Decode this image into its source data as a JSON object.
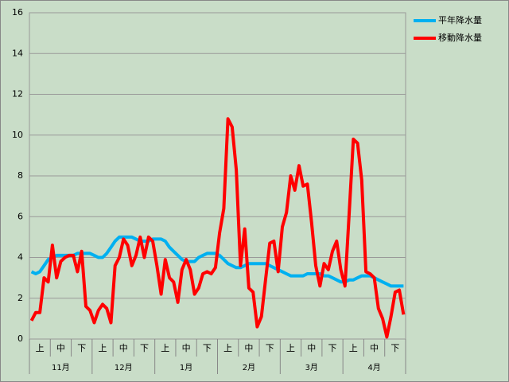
{
  "chart_data": {
    "type": "line",
    "categories": [
      null,
      null,
      "上",
      null,
      null,
      null,
      null,
      "中",
      null,
      null,
      null,
      null,
      "下",
      null,
      null,
      null,
      null,
      "上",
      null,
      null,
      null,
      null,
      "中",
      null,
      null,
      null,
      null,
      "下",
      null,
      null,
      null,
      null,
      "上",
      null,
      null,
      null,
      null,
      "中",
      null,
      null,
      null,
      null,
      "下",
      null,
      null,
      null,
      null,
      "上",
      null,
      null,
      null,
      null,
      "中",
      null,
      null,
      null,
      null,
      "下",
      null,
      null,
      null,
      null,
      "上",
      null,
      null,
      null,
      null,
      "中",
      null,
      null,
      null,
      null,
      "下",
      null,
      null,
      null,
      null,
      "上",
      null,
      null,
      null,
      null,
      "中",
      null,
      null,
      null,
      null,
      "下",
      null,
      null
    ],
    "months": [
      "11月",
      "12月",
      "1月",
      "2月",
      "3月",
      "4月"
    ],
    "series": [
      {
        "name": "平年降水量",
        "color": "#00b0f0",
        "values": [
          3.3,
          3.2,
          3.3,
          3.6,
          3.9,
          4.0,
          4.1,
          4.1,
          4.1,
          4.1,
          4.1,
          4.2,
          4.2,
          4.2,
          4.2,
          4.1,
          4.0,
          4.0,
          4.2,
          4.5,
          4.8,
          5.0,
          5.0,
          5.0,
          5.0,
          4.9,
          4.8,
          4.8,
          4.8,
          4.9,
          4.9,
          4.9,
          4.8,
          4.5,
          4.3,
          4.1,
          3.9,
          3.8,
          3.8,
          3.8,
          4.0,
          4.1,
          4.2,
          4.2,
          4.2,
          4.1,
          3.9,
          3.7,
          3.6,
          3.5,
          3.5,
          3.6,
          3.7,
          3.7,
          3.7,
          3.7,
          3.7,
          3.6,
          3.5,
          3.4,
          3.3,
          3.2,
          3.1,
          3.1,
          3.1,
          3.1,
          3.2,
          3.2,
          3.2,
          3.2,
          3.1,
          3.1,
          3.0,
          2.9,
          2.8,
          2.8,
          2.9,
          2.9,
          3.0,
          3.1,
          3.1,
          3.1,
          3.0,
          2.9,
          2.8,
          2.7,
          2.6,
          2.6,
          2.6,
          2.6
        ]
      },
      {
        "name": "移動降水量",
        "color": "#ff0000",
        "values": [
          0.9,
          1.3,
          1.3,
          3.0,
          2.8,
          4.6,
          3.0,
          3.8,
          4.0,
          4.1,
          4.1,
          3.3,
          4.3,
          1.6,
          1.4,
          0.8,
          1.4,
          1.7,
          1.5,
          0.8,
          3.6,
          4.0,
          4.9,
          4.6,
          3.6,
          4.1,
          5.0,
          4.0,
          5.0,
          4.8,
          3.6,
          2.2,
          3.9,
          3.0,
          2.8,
          1.8,
          3.4,
          3.9,
          3.4,
          2.2,
          2.5,
          3.2,
          3.3,
          3.2,
          3.5,
          5.2,
          6.4,
          10.8,
          10.4,
          8.3,
          3.6,
          5.4,
          2.5,
          2.3,
          0.6,
          1.1,
          2.9,
          4.7,
          4.8,
          3.3,
          5.5,
          6.2,
          8.0,
          7.3,
          8.5,
          7.5,
          7.6,
          5.7,
          3.6,
          2.6,
          3.7,
          3.4,
          4.3,
          4.8,
          3.4,
          2.6,
          6.2,
          9.8,
          9.6,
          7.8,
          3.3,
          3.2,
          3.0,
          1.5,
          1.0,
          0.1,
          1.1,
          2.3,
          2.4,
          1.2
        ]
      }
    ],
    "ylim": [
      0,
      16
    ],
    "yticks": [
      0,
      2,
      4,
      6,
      8,
      10,
      12,
      14,
      16
    ],
    "grid": true,
    "legend": "right"
  }
}
